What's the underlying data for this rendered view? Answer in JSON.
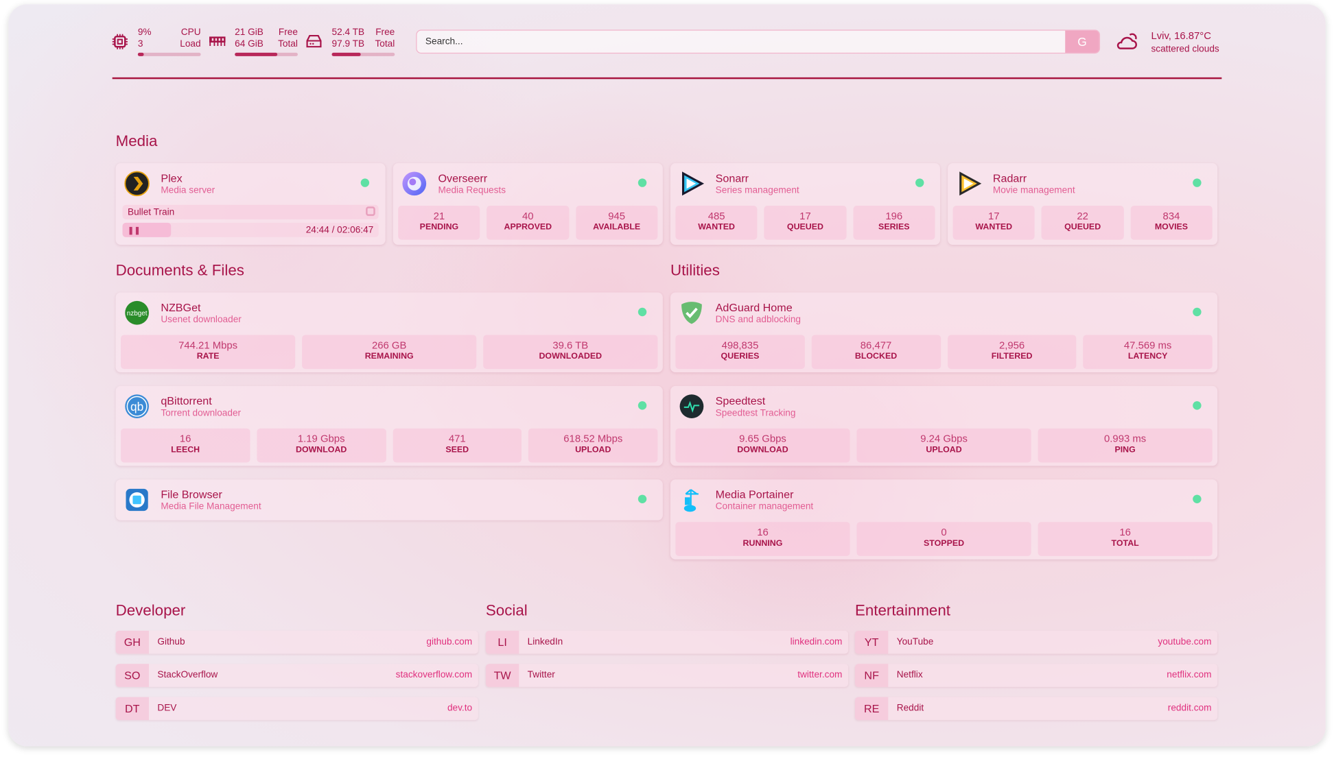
{
  "header": {
    "cpu": {
      "value": "9%",
      "cores": "3",
      "label1": "CPU",
      "label2": "Load",
      "bar_percent": 9,
      "icon": "cpu-icon"
    },
    "ram": {
      "free": "21 GiB",
      "total": "64 GiB",
      "label1": "Free",
      "label2": "Total",
      "bar_percent": 67,
      "icon": "ram-icon"
    },
    "disk": {
      "free": "52.4 TB",
      "total": "97.9 TB",
      "label1": "Free",
      "label2": "Total",
      "bar_percent": 46,
      "icon": "disk-icon"
    },
    "search": {
      "placeholder": "Search...",
      "button": "G"
    },
    "weather": {
      "location": "Lviv, 16.87°C",
      "condition": "scattered clouds",
      "icon": "cloud-sun-icon"
    }
  },
  "sections": {
    "media": "Media",
    "documents": "Documents & Files",
    "utilities": "Utilities",
    "developer": "Developer",
    "social": "Social",
    "entertainment": "Entertainment"
  },
  "colors": {
    "primary": "#a8144a",
    "accent": "#e25d93",
    "status_online": "#5fe0a4"
  },
  "plex": {
    "title": "Plex",
    "subtitle": "Media server",
    "now_playing": "Bullet Train",
    "time": "24:44 / 02:06:47",
    "progress_percent": 19
  },
  "cards": [
    {
      "id": "overseerr",
      "title": "Overseerr",
      "subtitle": "Media Requests",
      "icon": "overseerr",
      "stats": [
        [
          "21",
          "PENDING"
        ],
        [
          "40",
          "APPROVED"
        ],
        [
          "945",
          "AVAILABLE"
        ]
      ]
    },
    {
      "id": "sonarr",
      "title": "Sonarr",
      "subtitle": "Series management",
      "icon": "sonarr",
      "stats": [
        [
          "485",
          "WANTED"
        ],
        [
          "17",
          "QUEUED"
        ],
        [
          "196",
          "SERIES"
        ]
      ]
    },
    {
      "id": "radarr",
      "title": "Radarr",
      "subtitle": "Movie management",
      "icon": "radarr",
      "stats": [
        [
          "17",
          "WANTED"
        ],
        [
          "22",
          "QUEUED"
        ],
        [
          "834",
          "MOVIES"
        ]
      ]
    },
    {
      "id": "nzbget",
      "title": "NZBGet",
      "subtitle": "Usenet downloader",
      "icon": "nzbget",
      "logo_text": "nzbget",
      "stats": [
        [
          "744.21 Mbps",
          "RATE"
        ],
        [
          "266 GB",
          "REMAINING"
        ],
        [
          "39.6 TB",
          "DOWNLOADED"
        ]
      ]
    },
    {
      "id": "qbittorrent",
      "title": "qBittorrent",
      "subtitle": "Torrent downloader",
      "icon": "qbittorrent",
      "logo_text": "qb",
      "stats": [
        [
          "16",
          "LEECH"
        ],
        [
          "1.19 Gbps",
          "DOWNLOAD"
        ],
        [
          "471",
          "SEED"
        ],
        [
          "618.52 Mbps",
          "UPLOAD"
        ]
      ]
    },
    {
      "id": "filebrowser",
      "title": "File Browser",
      "subtitle": "Media File Management",
      "icon": "filebrowser",
      "stats": []
    },
    {
      "id": "adguard",
      "title": "AdGuard Home",
      "subtitle": "DNS and adblocking",
      "icon": "adguard",
      "stats": [
        [
          "498,835",
          "QUERIES"
        ],
        [
          "86,477",
          "BLOCKED"
        ],
        [
          "2,956",
          "FILTERED"
        ],
        [
          "47.569 ms",
          "LATENCY"
        ]
      ]
    },
    {
      "id": "speedtest",
      "title": "Speedtest",
      "subtitle": "Speedtest Tracking",
      "icon": "speedtest",
      "stats": [
        [
          "9.65 Gbps",
          "DOWNLOAD"
        ],
        [
          "9.24 Gbps",
          "UPLOAD"
        ],
        [
          "0.993 ms",
          "PING"
        ]
      ]
    },
    {
      "id": "portainer",
      "title": "Media Portainer",
      "subtitle": "Container management",
      "icon": "portainer",
      "stats": [
        [
          "16",
          "RUNNING"
        ],
        [
          "0",
          "STOPPED"
        ],
        [
          "16",
          "TOTAL"
        ]
      ]
    }
  ],
  "bookmarks": [
    [
      {
        "abbr": "GH",
        "name": "Github",
        "url": "github.com"
      },
      {
        "abbr": "SO",
        "name": "StackOverflow",
        "url": "stackoverflow.com"
      },
      {
        "abbr": "DT",
        "name": "DEV",
        "url": "dev.to"
      }
    ],
    [
      {
        "abbr": "LI",
        "name": "LinkedIn",
        "url": "linkedin.com"
      },
      {
        "abbr": "TW",
        "name": "Twitter",
        "url": "twitter.com"
      }
    ],
    [
      {
        "abbr": "YT",
        "name": "YouTube",
        "url": "youtube.com"
      },
      {
        "abbr": "NF",
        "name": "Netflix",
        "url": "netflix.com"
      },
      {
        "abbr": "RE",
        "name": "Reddit",
        "url": "reddit.com"
      }
    ]
  ]
}
